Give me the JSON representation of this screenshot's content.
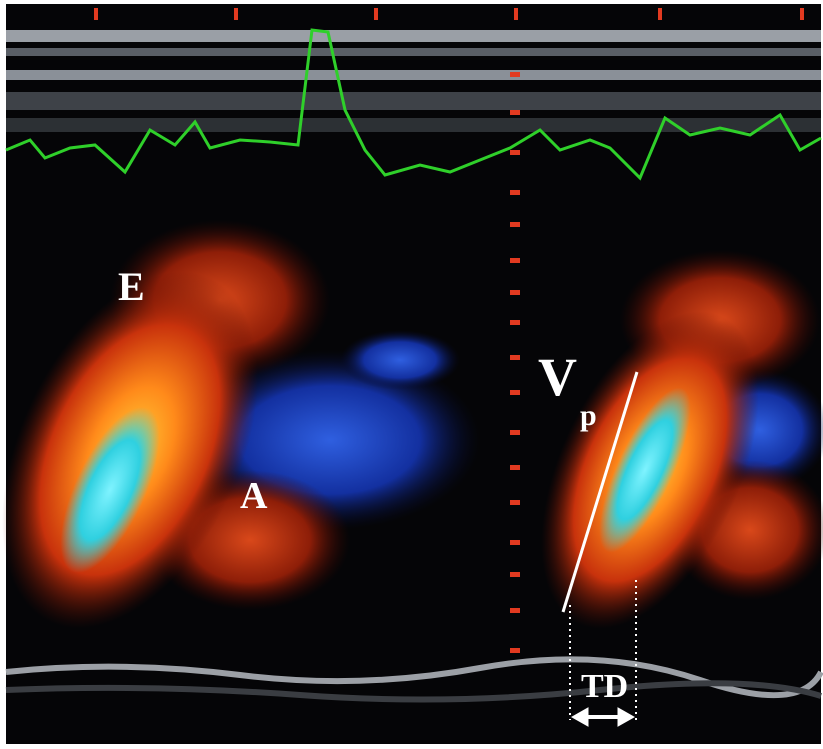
{
  "labels": {
    "e_wave": "E",
    "a_wave": "A",
    "vp_letter": "V",
    "vp_subscript": "p",
    "td": "TD"
  }
}
